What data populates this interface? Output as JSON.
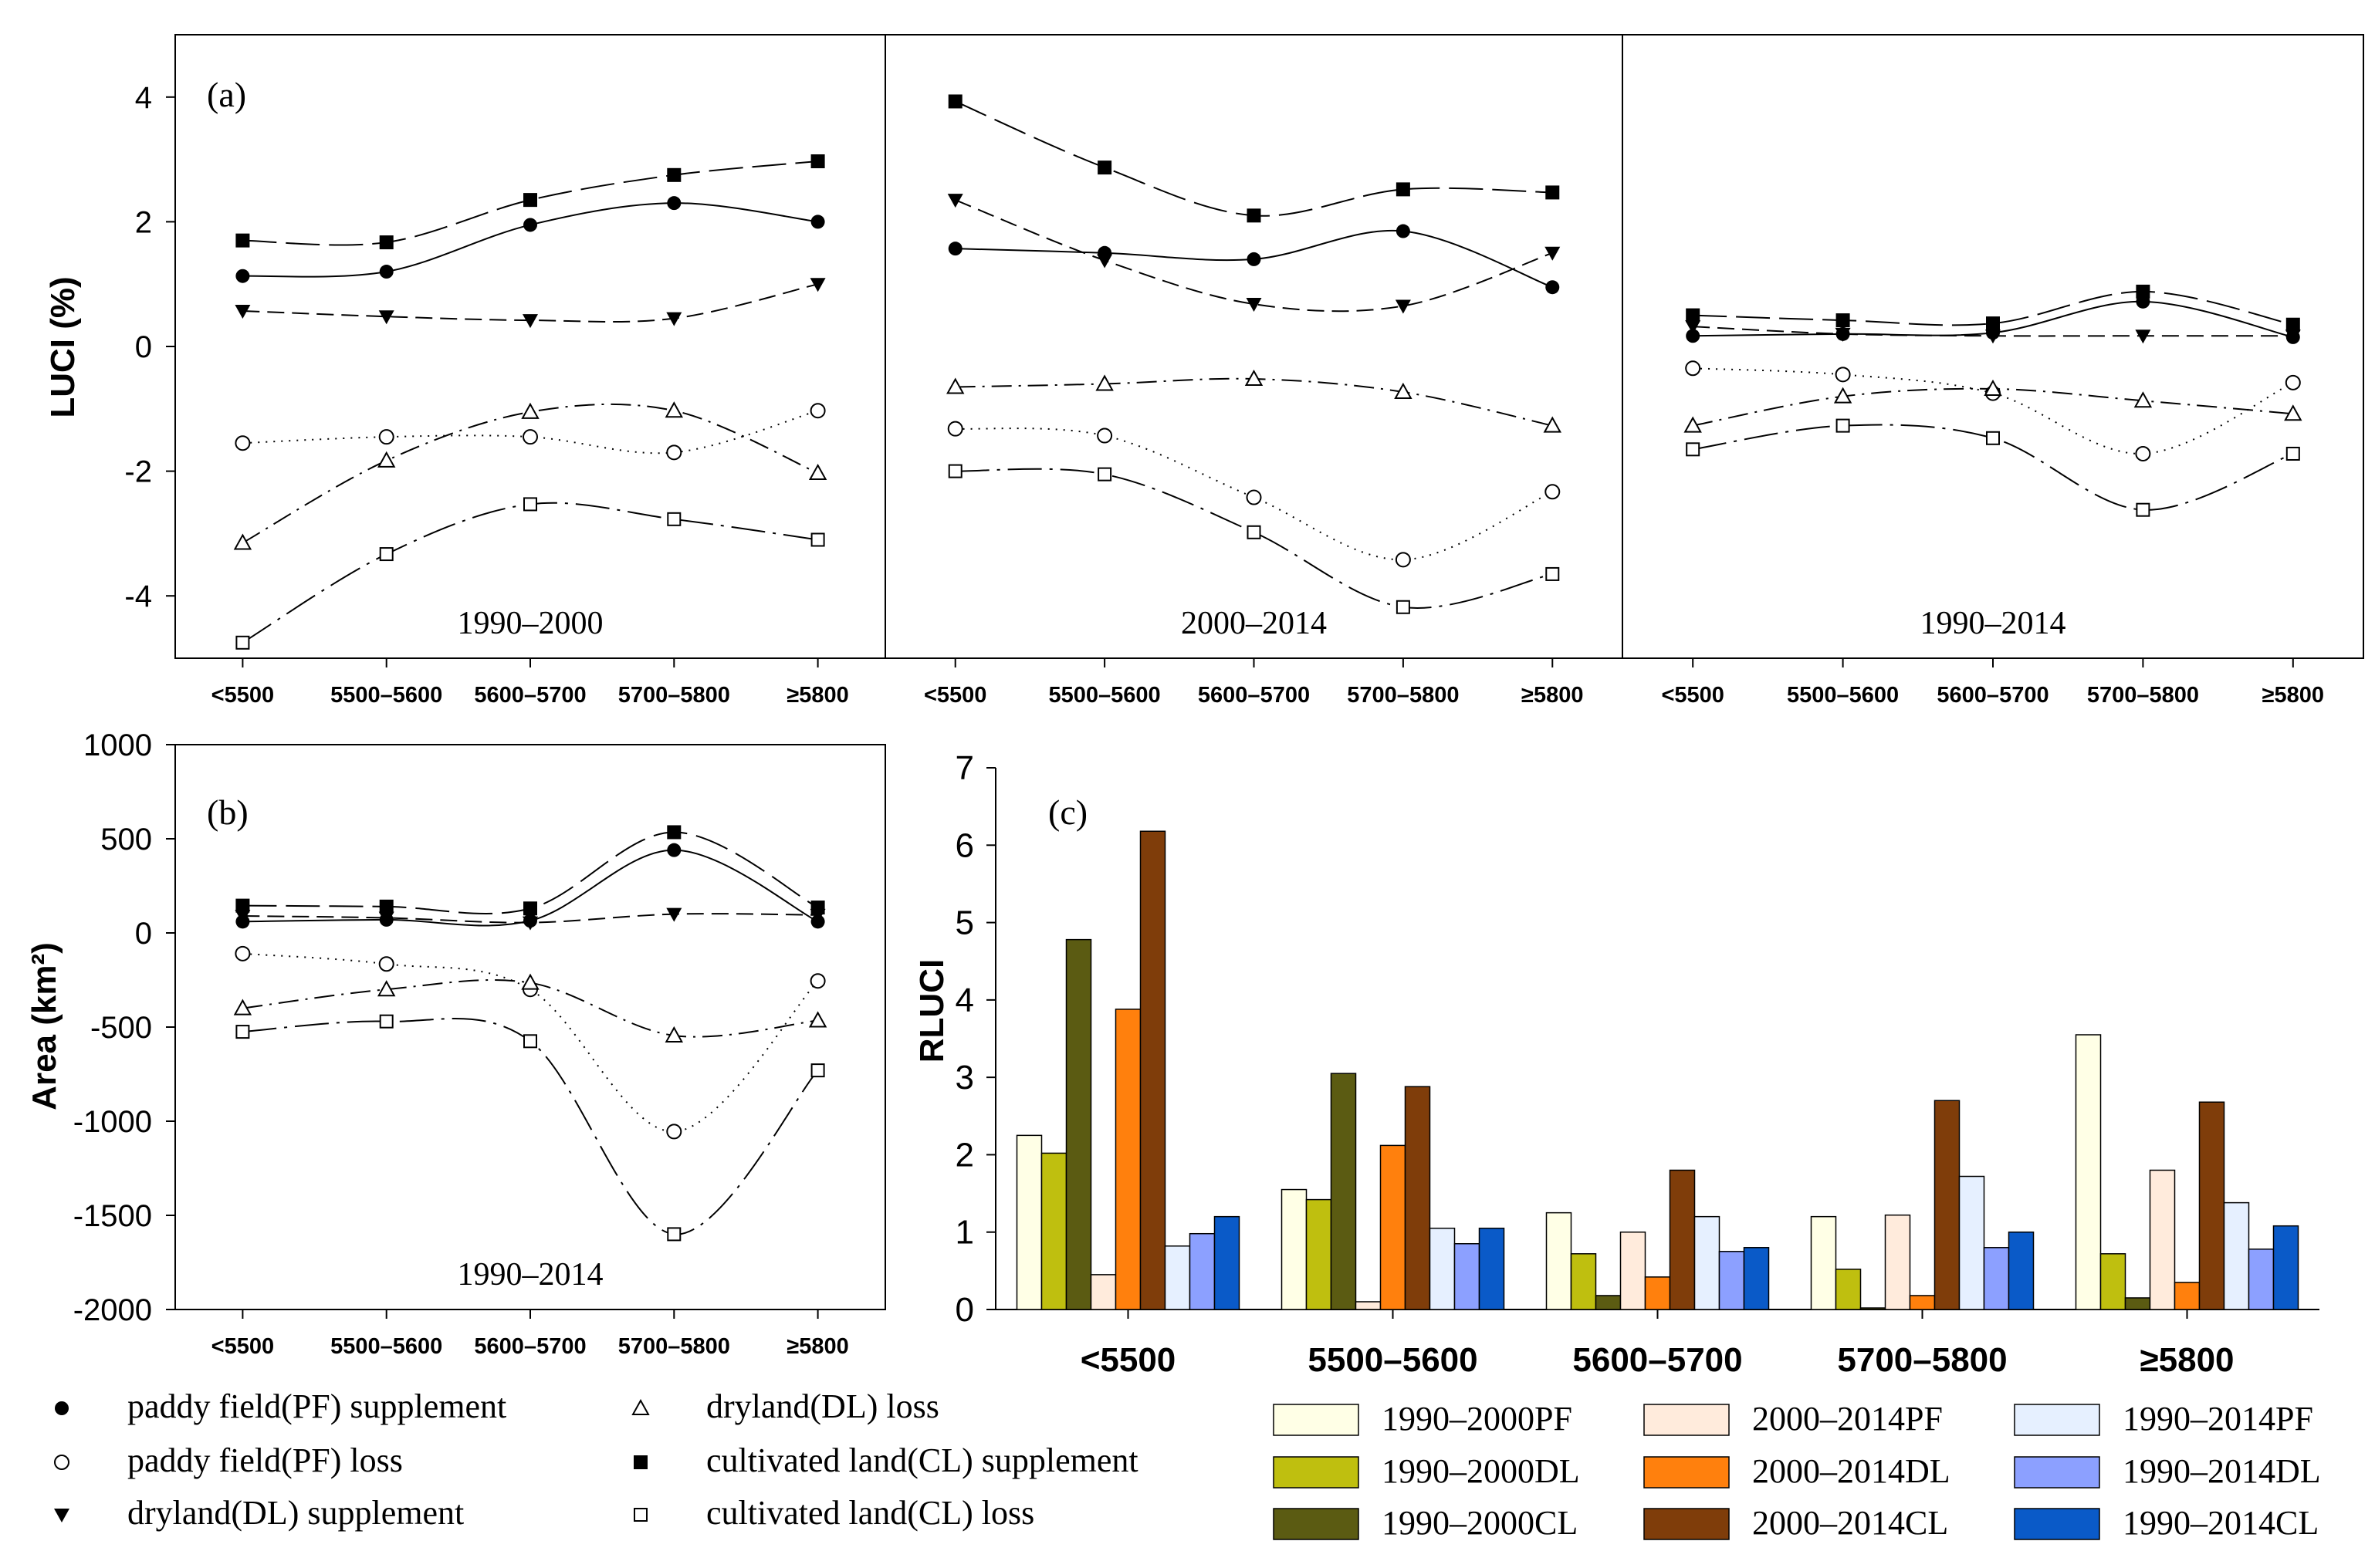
{
  "chart_data": [
    {
      "type": "line",
      "panel_label": "(a)",
      "ylabel": "LUCI  (%)",
      "ylim": [
        -5,
        5
      ],
      "yticks": [
        4,
        2,
        0,
        -2,
        -4
      ],
      "ytick_labels": [
        "4",
        "2",
        "0",
        "-2",
        "-4"
      ],
      "categories": [
        "<5500",
        "5500–5600",
        "5600–5700",
        "5700–5800",
        "≥5800"
      ],
      "subplots": [
        {
          "title": "1990–2000",
          "series": [
            {
              "name": "paddy field(PF) supplement",
              "marker": "circle-filled",
              "dash": "solid",
              "values": [
                1.13,
                1.2,
                1.95,
                2.3,
                2.0
              ]
            },
            {
              "name": "paddy field(PF) loss",
              "marker": "circle-open",
              "dash": "dotted",
              "values": [
                -1.55,
                -1.45,
                -1.45,
                -1.7,
                -1.03
              ]
            },
            {
              "name": "dryland(DL) supplement",
              "marker": "triangle-down-filled",
              "dash": "short-dash",
              "values": [
                0.57,
                0.48,
                0.42,
                0.45,
                1.0
              ]
            },
            {
              "name": "dryland(DL) loss",
              "marker": "triangle-open",
              "dash": "dash-dot",
              "values": [
                -3.15,
                -1.83,
                -1.05,
                -1.03,
                -2.03
              ]
            },
            {
              "name": "cultivated land(CL) supplement",
              "marker": "square-filled",
              "dash": "long-dash",
              "values": [
                1.7,
                1.67,
                2.35,
                2.75,
                2.97
              ]
            },
            {
              "name": "cultivated land(CL) loss",
              "marker": "square-open",
              "dash": "long-dash-dot",
              "values": [
                -4.75,
                -3.33,
                -2.53,
                -2.77,
                -3.1
              ]
            }
          ]
        },
        {
          "title": "2000–2014",
          "series": [
            {
              "name": "paddy field(PF) supplement",
              "marker": "circle-filled",
              "dash": "solid",
              "values": [
                1.57,
                1.5,
                1.4,
                1.85,
                0.95
              ]
            },
            {
              "name": "paddy field(PF) loss",
              "marker": "circle-open",
              "dash": "dotted",
              "values": [
                -1.32,
                -1.43,
                -2.42,
                -3.42,
                -2.33
              ]
            },
            {
              "name": "dryland(DL) supplement",
              "marker": "triangle-down-filled",
              "dash": "short-dash",
              "values": [
                2.35,
                1.38,
                0.68,
                0.65,
                1.5
              ]
            },
            {
              "name": "dryland(DL) loss",
              "marker": "triangle-open",
              "dash": "dash-dot",
              "values": [
                -0.65,
                -0.6,
                -0.52,
                -0.73,
                -1.27
              ]
            },
            {
              "name": "cultivated land(CL) supplement",
              "marker": "square-filled",
              "dash": "long-dash",
              "values": [
                3.93,
                2.87,
                2.1,
                2.52,
                2.47
              ]
            },
            {
              "name": "cultivated land(CL) loss",
              "marker": "square-open",
              "dash": "long-dash-dot",
              "values": [
                -2.0,
                -2.05,
                -2.98,
                -4.18,
                -3.65
              ]
            }
          ]
        },
        {
          "title": "1990–2014",
          "series": [
            {
              "name": "paddy field(PF) supplement",
              "marker": "circle-filled",
              "dash": "solid",
              "values": [
                0.17,
                0.2,
                0.22,
                0.72,
                0.15
              ]
            },
            {
              "name": "paddy field(PF) loss",
              "marker": "circle-open",
              "dash": "dotted",
              "values": [
                -0.35,
                -0.45,
                -0.75,
                -1.72,
                -0.58
              ]
            },
            {
              "name": "dryland(DL) supplement",
              "marker": "triangle-down-filled",
              "dash": "short-dash",
              "values": [
                0.32,
                0.2,
                0.17,
                0.17,
                0.17
              ]
            },
            {
              "name": "dryland(DL) loss",
              "marker": "triangle-open",
              "dash": "dash-dot",
              "values": [
                -1.27,
                -0.8,
                -0.68,
                -0.87,
                -1.08
              ]
            },
            {
              "name": "cultivated land(CL) supplement",
              "marker": "square-filled",
              "dash": "long-dash",
              "values": [
                0.5,
                0.42,
                0.37,
                0.88,
                0.35
              ]
            },
            {
              "name": "cultivated land(CL) loss",
              "marker": "square-open",
              "dash": "long-dash-dot",
              "values": [
                -1.65,
                -1.27,
                -1.47,
                -2.62,
                -1.72
              ]
            }
          ]
        }
      ]
    },
    {
      "type": "line",
      "panel_label": "(b)",
      "ylabel": "Area (km²)",
      "ylim": [
        -2000,
        1000
      ],
      "yticks": [
        1000,
        500,
        0,
        -500,
        -1000,
        -1500,
        -2000
      ],
      "ytick_labels": [
        "1000",
        "500",
        "0",
        "-500",
        "-1000",
        "-1500",
        "-2000"
      ],
      "categories": [
        "<5500",
        "5500–5600",
        "5600–5700",
        "5700–5800",
        "≥5800"
      ],
      "title": "1990–2014",
      "series": [
        {
          "name": "paddy field(PF) supplement",
          "marker": "circle-filled",
          "dash": "solid",
          "values": [
            60,
            70,
            65,
            440,
            60
          ]
        },
        {
          "name": "paddy field(PF) loss",
          "marker": "circle-open",
          "dash": "dotted",
          "values": [
            -110,
            -165,
            -300,
            -1055,
            -255
          ]
        },
        {
          "name": "dryland(DL) supplement",
          "marker": "triangle-down-filled",
          "dash": "short-dash",
          "values": [
            90,
            80,
            55,
            100,
            95
          ]
        },
        {
          "name": "dryland(DL) loss",
          "marker": "triangle-open",
          "dash": "dash-dot",
          "values": [
            -400,
            -300,
            -265,
            -545,
            -465
          ]
        },
        {
          "name": "cultivated land(CL) supplement",
          "marker": "square-filled",
          "dash": "long-dash",
          "values": [
            145,
            140,
            130,
            535,
            135
          ]
        },
        {
          "name": "cultivated land(CL) loss",
          "marker": "square-open",
          "dash": "long-dash-dot",
          "values": [
            -525,
            -470,
            -575,
            -1600,
            -730
          ]
        }
      ]
    },
    {
      "type": "bar",
      "panel_label": "(c)",
      "ylabel": "RLUCI",
      "ylim": [
        0,
        7
      ],
      "yticks": [
        0,
        1,
        2,
        3,
        4,
        5,
        6,
        7
      ],
      "ytick_labels": [
        "0",
        "1",
        "2",
        "3",
        "4",
        "5",
        "6",
        "7"
      ],
      "categories": [
        "<5500",
        "5500–5600",
        "5600–5700",
        "5700–5800",
        "≥5800"
      ],
      "series": [
        {
          "name": "1990–2000PF",
          "color": "#FFFFE6",
          "values": [
            2.25,
            1.55,
            1.25,
            1.2,
            3.55
          ]
        },
        {
          "name": "1990–2000DL",
          "color": "#BFBF0F",
          "values": [
            2.02,
            1.42,
            0.72,
            0.52,
            0.72
          ]
        },
        {
          "name": "1990–2000CL",
          "color": "#5B5B12",
          "values": [
            4.78,
            3.05,
            0.18,
            0.02,
            0.15
          ]
        },
        {
          "name": "2000–2014PF",
          "color": "#FFEBDC",
          "values": [
            0.45,
            0.1,
            1.0,
            1.22,
            1.8
          ]
        },
        {
          "name": "2000–2014DL",
          "color": "#FF800D",
          "values": [
            3.88,
            2.12,
            0.42,
            0.18,
            0.35
          ]
        },
        {
          "name": "2000–2014CL",
          "color": "#7F3D0A",
          "values": [
            6.18,
            2.88,
            1.8,
            2.7,
            2.68
          ]
        },
        {
          "name": "1990–2014PF",
          "color": "#E6F0FF",
          "values": [
            0.82,
            1.05,
            1.2,
            1.72,
            1.38
          ]
        },
        {
          "name": "1990–2014DL",
          "color": "#8CA0FF",
          "values": [
            0.98,
            0.85,
            0.75,
            0.8,
            0.78
          ]
        },
        {
          "name": "1990–2014CL",
          "color": "#0A5AC8",
          "values": [
            1.2,
            1.05,
            0.8,
            1.0,
            1.08
          ]
        }
      ]
    }
  ]
}
